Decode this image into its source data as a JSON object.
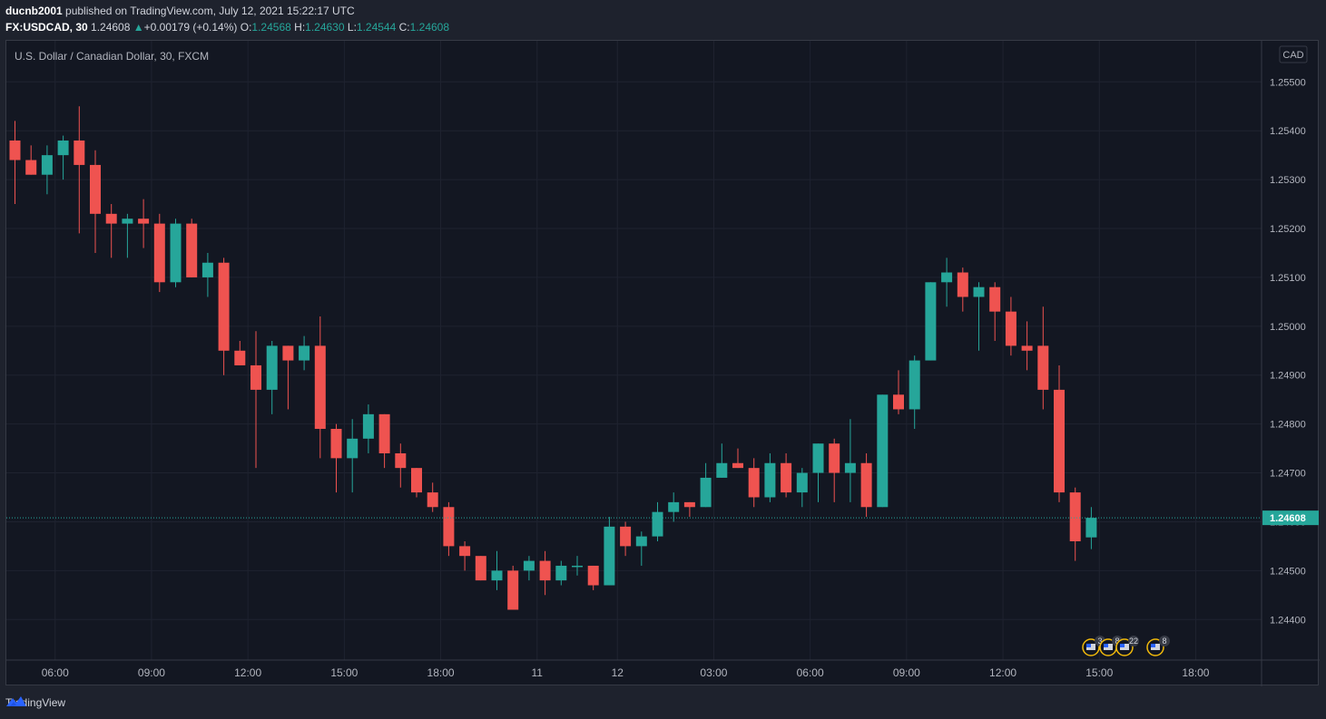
{
  "header": {
    "author": "ducnb2001",
    "published_text": " published on TradingView.com, July 12, 2021 15:22:17 UTC",
    "symbol": "FX:USDCAD, 30",
    "last_price": "1.24608",
    "change_arrow": "▲",
    "change": "+0.00179 (+0.14%)",
    "o_label": "O:",
    "o_value": "1.24568",
    "h_label": "H:",
    "h_value": "1.24630",
    "l_label": "L:",
    "l_value": "1.24544",
    "c_label": "C:",
    "c_value": "1.24608"
  },
  "chart_title": "U.S. Dollar / Canadian Dollar, 30, FXCM",
  "currency_label": "CAD",
  "price_label": "1.24608",
  "footer": {
    "brand": "TradingView"
  },
  "events": [
    "3",
    "8",
    "22",
    "8"
  ],
  "colors": {
    "up": "#26a69a",
    "down": "#ef5350",
    "background": "#131722",
    "grid": "#1f2330",
    "axis_text": "#b2b5be"
  },
  "chart_data": {
    "type": "candlestick",
    "title": "U.S. Dollar / Canadian Dollar, 30, FXCM",
    "y_ticks": [
      1.244,
      1.245,
      1.246,
      1.247,
      1.248,
      1.249,
      1.25,
      1.251,
      1.252,
      1.253,
      1.254,
      1.255
    ],
    "y_tick_labels": [
      "1.24400",
      "1.24500",
      "1.24600",
      "1.24700",
      "1.24800",
      "1.24900",
      "1.25000",
      "1.25100",
      "1.25200",
      "1.25300",
      "1.25400",
      "1.25500"
    ],
    "x_tick_labels": [
      {
        "label": "06:00",
        "bar": 2.5
      },
      {
        "label": "09:00",
        "bar": 8.5
      },
      {
        "label": "12:00",
        "bar": 14.5
      },
      {
        "label": "15:00",
        "bar": 20.5
      },
      {
        "label": "18:00",
        "bar": 26.5
      },
      {
        "label": "11",
        "bar": 32.5
      },
      {
        "label": "12",
        "bar": 37.5
      },
      {
        "label": "03:00",
        "bar": 43.5
      },
      {
        "label": "06:00",
        "bar": 49.5
      },
      {
        "label": "09:00",
        "bar": 55.5
      },
      {
        "label": "12:00",
        "bar": 61.5
      },
      {
        "label": "15:00",
        "bar": 67.5
      },
      {
        "label": "18:00",
        "bar": 73.5
      }
    ],
    "ylim": [
      1.24317,
      1.25584
    ],
    "bars_visible": 78,
    "current_price": 1.24608,
    "ohlc": [
      [
        1.2538,
        1.2542,
        1.2525,
        1.2534
      ],
      [
        1.2534,
        1.2537,
        1.2531,
        1.2531
      ],
      [
        1.2531,
        1.2537,
        1.2527,
        1.2535
      ],
      [
        1.2535,
        1.2539,
        1.253,
        1.2538
      ],
      [
        1.2538,
        1.2545,
        1.2519,
        1.2533
      ],
      [
        1.2533,
        1.2536,
        1.2515,
        1.2523
      ],
      [
        1.2523,
        1.2525,
        1.2514,
        1.2521
      ],
      [
        1.2521,
        1.2523,
        1.2514,
        1.2522
      ],
      [
        1.2522,
        1.2526,
        1.2516,
        1.2521
      ],
      [
        1.2521,
        1.2523,
        1.2507,
        1.2509
      ],
      [
        1.2509,
        1.2522,
        1.2508,
        1.2521
      ],
      [
        1.2521,
        1.2522,
        1.251,
        1.251
      ],
      [
        1.251,
        1.2515,
        1.2506,
        1.2513
      ],
      [
        1.2513,
        1.2514,
        1.249,
        1.2495
      ],
      [
        1.2495,
        1.2497,
        1.2492,
        1.2492
      ],
      [
        1.2492,
        1.2499,
        1.2471,
        1.2487
      ],
      [
        1.2487,
        1.2497,
        1.2482,
        1.2496
      ],
      [
        1.2496,
        1.2496,
        1.2483,
        1.2493
      ],
      [
        1.2493,
        1.2498,
        1.2491,
        1.2496
      ],
      [
        1.2496,
        1.2502,
        1.2473,
        1.2479
      ],
      [
        1.2479,
        1.248,
        1.2466,
        1.2473
      ],
      [
        1.2473,
        1.2481,
        1.2466,
        1.2477
      ],
      [
        1.2477,
        1.2484,
        1.2474,
        1.2482
      ],
      [
        1.2482,
        1.2482,
        1.2471,
        1.2474
      ],
      [
        1.2474,
        1.2476,
        1.2467,
        1.2471
      ],
      [
        1.2471,
        1.2471,
        1.2465,
        1.2466
      ],
      [
        1.2466,
        1.2468,
        1.2462,
        1.2463
      ],
      [
        1.2463,
        1.2464,
        1.2453,
        1.2455
      ],
      [
        1.2455,
        1.2456,
        1.245,
        1.2453
      ],
      [
        1.2453,
        1.2453,
        1.2448,
        1.2448
      ],
      [
        1.2448,
        1.2454,
        1.2446,
        1.245
      ],
      [
        1.245,
        1.2451,
        1.2442,
        1.2442
      ],
      [
        1.245,
        1.2453,
        1.2448,
        1.2452
      ],
      [
        1.2452,
        1.2454,
        1.2445,
        1.2448
      ],
      [
        1.2448,
        1.2452,
        1.2447,
        1.2451
      ],
      [
        1.2451,
        1.2453,
        1.2449,
        1.2451
      ],
      [
        1.2451,
        1.2451,
        1.2446,
        1.2447
      ],
      [
        1.2447,
        1.2461,
        1.2447,
        1.2459
      ],
      [
        1.2459,
        1.246,
        1.2453,
        1.2455
      ],
      [
        1.2455,
        1.2458,
        1.2451,
        1.2457
      ],
      [
        1.2457,
        1.2464,
        1.2456,
        1.2462
      ],
      [
        1.2462,
        1.2466,
        1.246,
        1.2464
      ],
      [
        1.2464,
        1.2464,
        1.2461,
        1.2463
      ],
      [
        1.2463,
        1.2472,
        1.2463,
        1.2469
      ],
      [
        1.2469,
        1.2476,
        1.2469,
        1.2472
      ],
      [
        1.2472,
        1.2475,
        1.2471,
        1.2471
      ],
      [
        1.2471,
        1.2473,
        1.2463,
        1.2465
      ],
      [
        1.2465,
        1.2474,
        1.2464,
        1.2472
      ],
      [
        1.2472,
        1.2474,
        1.2465,
        1.2466
      ],
      [
        1.2466,
        1.2471,
        1.2463,
        1.247
      ],
      [
        1.247,
        1.2476,
        1.2464,
        1.2476
      ],
      [
        1.2476,
        1.2477,
        1.2464,
        1.247
      ],
      [
        1.247,
        1.2481,
        1.2464,
        1.2472
      ],
      [
        1.2472,
        1.2474,
        1.2461,
        1.2463
      ],
      [
        1.2463,
        1.2486,
        1.2463,
        1.2486
      ],
      [
        1.2486,
        1.2491,
        1.2482,
        1.2483
      ],
      [
        1.2483,
        1.2494,
        1.2479,
        1.2493
      ],
      [
        1.2493,
        1.2509,
        1.2493,
        1.2509
      ],
      [
        1.2509,
        1.2514,
        1.2504,
        1.2511
      ],
      [
        1.2511,
        1.2512,
        1.2503,
        1.2506
      ],
      [
        1.2506,
        1.2509,
        1.2495,
        1.2508
      ],
      [
        1.2508,
        1.2509,
        1.2497,
        1.2503
      ],
      [
        1.2503,
        1.2506,
        1.2494,
        1.2496
      ],
      [
        1.2496,
        1.2501,
        1.2491,
        1.2495
      ],
      [
        1.2496,
        1.2504,
        1.2483,
        1.2487
      ],
      [
        1.2487,
        1.2492,
        1.2464,
        1.2466
      ],
      [
        1.2466,
        1.2467,
        1.2452,
        1.2456
      ],
      [
        1.24568,
        1.2463,
        1.24544,
        1.24608
      ]
    ]
  }
}
